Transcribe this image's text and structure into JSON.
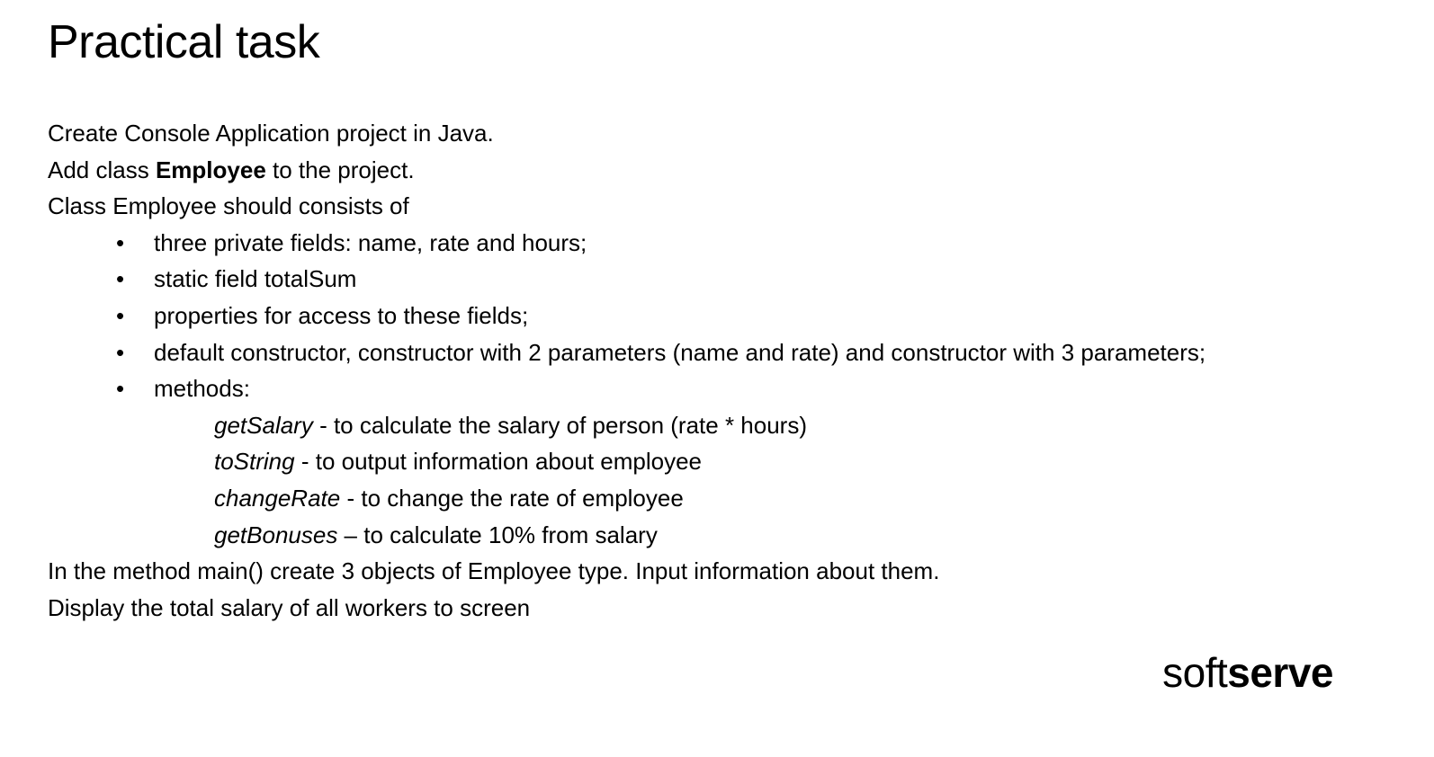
{
  "title": "Practical task",
  "intro": {
    "line1": "Create Console Application project in Java.",
    "line2_pre": "Add class ",
    "line2_bold": "Employee",
    "line2_post": " to the project.",
    "line3": "Class Employee should consists of"
  },
  "bullet_symbol": "•",
  "bullets": [
    "three private fields: name, rate and hours;",
    "static field totalSum",
    "properties for access to these fields;",
    "default constructor, constructor with 2 parameters (name and rate) and constructor with 3 parameters;",
    "methods:"
  ],
  "methods": [
    {
      "name": "getSalary",
      "description": " - to calculate the salary of person (rate * hours)"
    },
    {
      "name": "toString",
      "description": " - to output information about employee"
    },
    {
      "name": "changeRate",
      "description": " - to change the rate of employee"
    },
    {
      "name": "getBonuses",
      "description": " – to calculate 10% from salary"
    }
  ],
  "outro": {
    "line1": "In the method main() create 3 objects of Employee type. Input information about them.",
    "line2": "Display the total salary of all workers to screen"
  },
  "logo": {
    "part1": "soft",
    "part2": "serve"
  }
}
